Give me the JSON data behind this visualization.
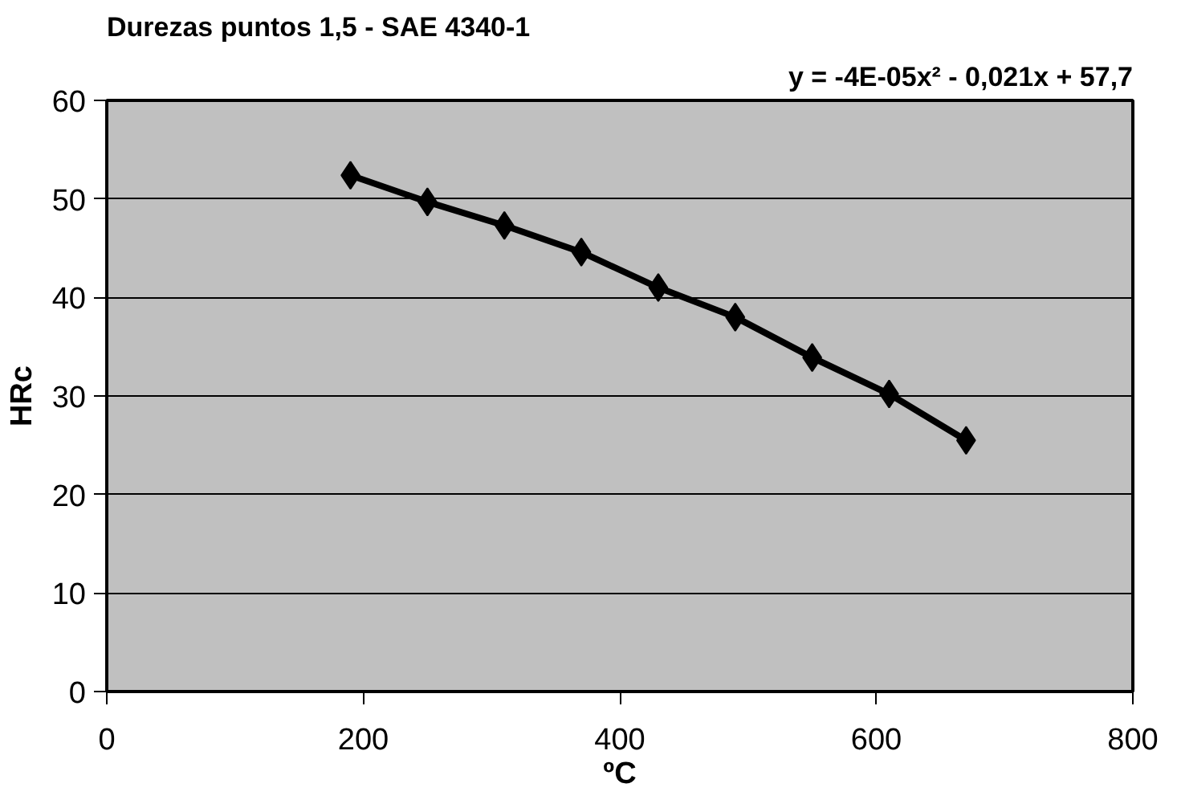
{
  "chart_data": {
    "type": "line",
    "title": "Durezas puntos 1,5 - SAE 4340-1",
    "annotations": [
      "y = -4E-05x² - 0,021x + 57,7"
    ],
    "xlabel": "ºC",
    "ylabel": "HRc",
    "x": [
      190,
      250,
      310,
      370,
      430,
      490,
      550,
      610,
      670
    ],
    "series": [
      {
        "color": "#000000",
        "values": [
          52.4,
          49.7,
          47.3,
          44.6,
          41.0,
          38.0,
          33.9,
          30.2,
          25.5
        ]
      }
    ],
    "xlim": [
      0,
      800
    ],
    "xticks": [
      0,
      200,
      400,
      600,
      800
    ],
    "ylim": [
      0,
      60
    ],
    "yticks": [
      0,
      10,
      20,
      30,
      40,
      50,
      60
    ],
    "grid": "y",
    "marker": "diamond",
    "line_style": "solid"
  }
}
